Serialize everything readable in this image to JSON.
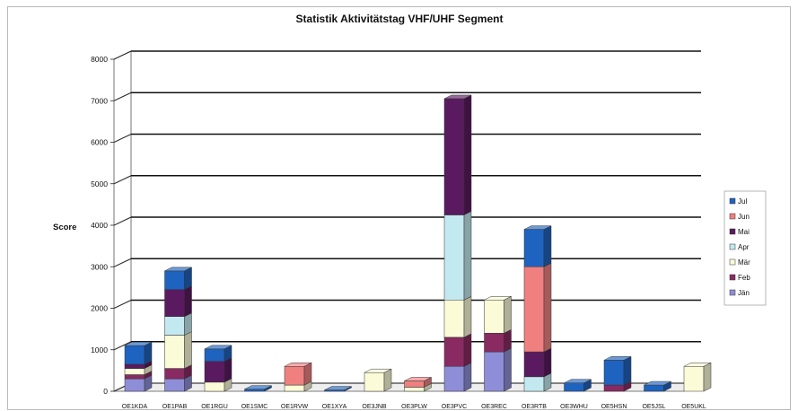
{
  "chart_data": {
    "type": "bar",
    "stacked": true,
    "three_d": true,
    "title": "Statistik Aktivitätstag VHF/UHF Segment",
    "ylabel": "Score",
    "xlabel": "",
    "ylim": [
      0,
      8000
    ],
    "yticks": [
      "0",
      "1000",
      "2000",
      "3000",
      "4000",
      "5000",
      "6000",
      "7000",
      "8000"
    ],
    "grid": true,
    "legend_position": "right",
    "categories": [
      "OE1KDA",
      "OE1PAB",
      "OE1RGU",
      "OE1SMC",
      "OE1RVW",
      "OE1XYA",
      "OE3JNB",
      "OE3PLW",
      "OE3PVC",
      "OE3REC",
      "OE3RTB",
      "OE3WHU",
      "OE5HSN",
      "OE5JSL",
      "OE5UKL"
    ],
    "series": [
      {
        "name": "Jän",
        "color": "#8e8ed8",
        "values": [
          300,
          300,
          0,
          0,
          0,
          0,
          0,
          0,
          600,
          950,
          0,
          0,
          0,
          0,
          0
        ]
      },
      {
        "name": "Feb",
        "color": "#8a2a62",
        "values": [
          100,
          250,
          0,
          0,
          0,
          0,
          0,
          0,
          700,
          450,
          0,
          0,
          150,
          0,
          0
        ]
      },
      {
        "name": "Mär",
        "color": "#fbfbd8",
        "values": [
          150,
          800,
          220,
          0,
          150,
          0,
          450,
          100,
          900,
          800,
          0,
          0,
          0,
          0,
          600
        ]
      },
      {
        "name": "Apr",
        "color": "#c2e9ef",
        "values": [
          0,
          450,
          0,
          0,
          0,
          0,
          0,
          0,
          2050,
          0,
          350,
          0,
          0,
          0,
          0
        ]
      },
      {
        "name": "Mai",
        "color": "#5a1a60",
        "values": [
          100,
          650,
          500,
          0,
          0,
          0,
          0,
          0,
          2800,
          0,
          600,
          0,
          0,
          0,
          0
        ]
      },
      {
        "name": "Jun",
        "color": "#f08080",
        "values": [
          0,
          0,
          0,
          0,
          450,
          0,
          0,
          150,
          0,
          0,
          2050,
          0,
          0,
          0,
          0
        ]
      },
      {
        "name": "Jul",
        "color": "#1f63c0",
        "values": [
          450,
          450,
          300,
          50,
          0,
          30,
          0,
          0,
          0,
          0,
          900,
          200,
          600,
          150,
          0
        ]
      }
    ]
  }
}
